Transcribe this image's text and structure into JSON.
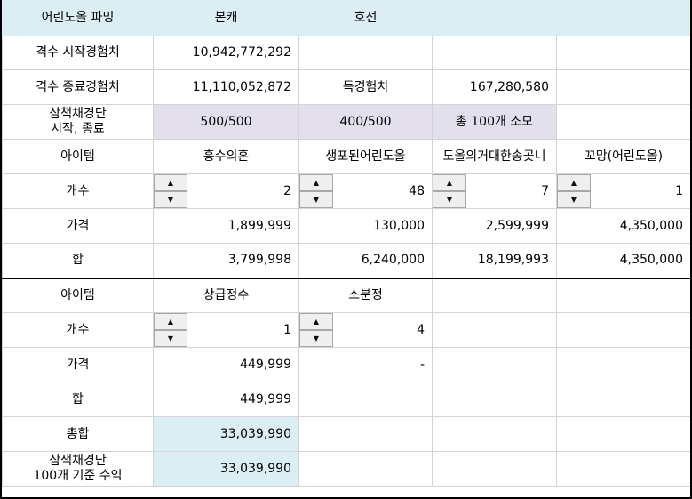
{
  "header": {
    "title": "어린도올 파밍",
    "col2": "본캐",
    "col3": "호선"
  },
  "exp": {
    "start_label": "격수 시작경험치",
    "start_value": "10,942,772,292",
    "end_label": "격수 종료경험치",
    "end_value": "11,110,052,872",
    "gain_label": "득경험치",
    "gain_value": "167,280,580"
  },
  "samsaek": {
    "label_line1": "삼책채경단",
    "label_line2": "시작, 종료",
    "main": "500/500",
    "sub": "400/500",
    "used": "총 100개 소모"
  },
  "items1": {
    "header_label": "아이템",
    "names": [
      "흉수의혼",
      "생포된어린도올",
      "도올의거대한송곳니",
      "꼬망(어린도올)"
    ],
    "count_label": "개수",
    "counts": [
      "2",
      "48",
      "7",
      "1"
    ],
    "price_label": "가격",
    "prices": [
      "1,899,999",
      "130,000",
      "2,599,999",
      "4,350,000"
    ],
    "sum_label": "합",
    "sums": [
      "3,799,998",
      "6,240,000",
      "18,199,993",
      "4,350,000"
    ]
  },
  "items2": {
    "header_label": "아이템",
    "names": [
      "상급정수",
      "소분정"
    ],
    "count_label": "개수",
    "counts": [
      "1",
      "4"
    ],
    "price_label": "가격",
    "prices": [
      "449,999",
      "-"
    ],
    "sum_label": "합",
    "sums": [
      "449,999"
    ]
  },
  "totals": {
    "total_label": "총합",
    "total_value": "33,039,990",
    "profit_label_line1": "삼색채경단",
    "profit_label_line2": "100개 기준 수익",
    "profit_value": "33,039,990"
  },
  "icons": {
    "spin_up": "▲",
    "spin_down": "▼"
  },
  "colors": {
    "header_bg": "#dbeef4",
    "lavender": "#e4dfec",
    "light_blue": "#daeef3"
  }
}
